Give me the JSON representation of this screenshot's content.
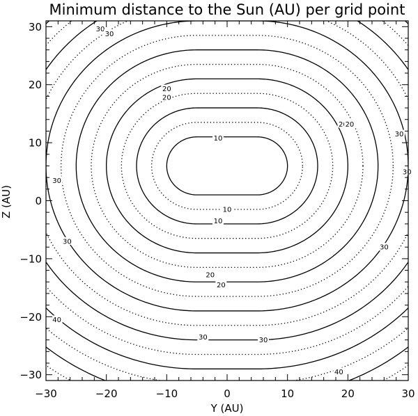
{
  "chart_data": {
    "type": "contour",
    "title": "Minimum distance to the Sun (AU) per grid point",
    "xlabel": "Y (AU)",
    "ylabel": "Z (AU)",
    "xlim": [
      -30,
      30
    ],
    "ylim": [
      -31,
      31
    ],
    "xticks": [
      -30,
      -20,
      -10,
      0,
      10,
      20,
      30
    ],
    "yticks": [
      -30,
      -20,
      -10,
      0,
      10,
      20,
      30
    ],
    "grid": false,
    "legend": "none",
    "series": [
      {
        "style": "solid",
        "center": [
          0,
          6
        ],
        "levels": [
          5,
          10,
          15,
          20,
          25,
          30,
          35,
          40,
          45
        ]
      },
      {
        "style": "dotted",
        "center": [
          0,
          6
        ],
        "levels": [
          7.5,
          12.5,
          17.5,
          22.5,
          27.5,
          32.5,
          37.5,
          42.5
        ]
      }
    ],
    "labels": [
      {
        "text": "10",
        "x": 0,
        "y": -1.5
      },
      {
        "text": "10",
        "x": -1.5,
        "y": 10.8
      },
      {
        "text": "10",
        "x": -1.5,
        "y": -3.5
      },
      {
        "text": "20",
        "x": -2.8,
        "y": -12.8
      },
      {
        "text": "20",
        "x": -1,
        "y": -14.5
      },
      {
        "text": "20",
        "x": -10,
        "y": 19.3
      },
      {
        "text": "20",
        "x": -10,
        "y": 17.8
      },
      {
        "text": "20",
        "x": 19.2,
        "y": 13.2
      },
      {
        "text": "20",
        "x": 20.3,
        "y": 13.2
      },
      {
        "text": "30",
        "x": -21,
        "y": 29.6
      },
      {
        "text": "30",
        "x": -19.5,
        "y": 28.8
      },
      {
        "text": "30",
        "x": -28.2,
        "y": 3.5
      },
      {
        "text": "30",
        "x": -26.5,
        "y": -7
      },
      {
        "text": "30",
        "x": -4,
        "y": -23.5
      },
      {
        "text": "30",
        "x": 6,
        "y": -24
      },
      {
        "text": "30",
        "x": 26,
        "y": -8
      },
      {
        "text": "30",
        "x": 28.5,
        "y": 11.5
      },
      {
        "text": "30",
        "x": 29.8,
        "y": 5
      },
      {
        "text": "40",
        "x": -28.2,
        "y": -20.5
      },
      {
        "text": "40",
        "x": 18.5,
        "y": -29.5
      }
    ]
  }
}
